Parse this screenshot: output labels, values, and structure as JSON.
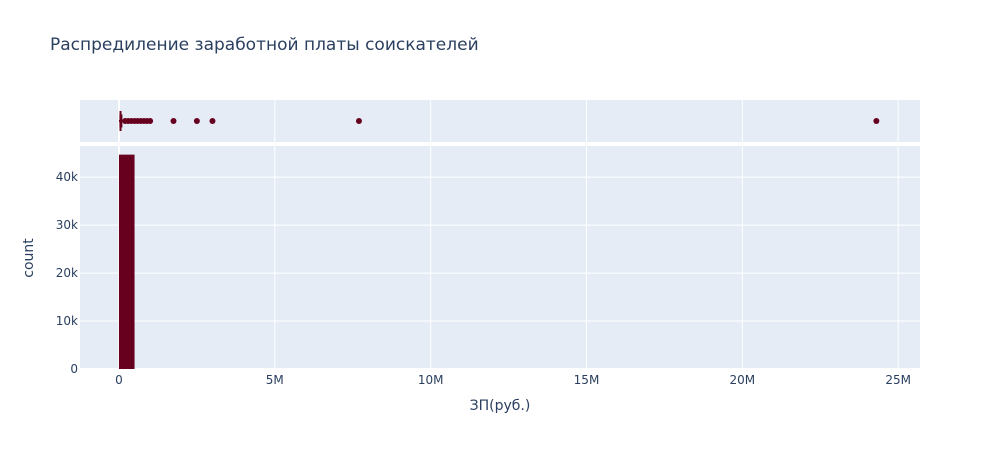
{
  "chart_data": {
    "type": "histogram",
    "title": "Распредиление заработной платы соискателей",
    "xlabel": "ЗП(руб.)",
    "ylabel": "count",
    "xlim": [
      -1250000,
      25700000
    ],
    "ylim": [
      0,
      46500
    ],
    "x_ticks": [
      {
        "value": 0,
        "label": "0"
      },
      {
        "value": 5000000,
        "label": "5M"
      },
      {
        "value": 10000000,
        "label": "10M"
      },
      {
        "value": 15000000,
        "label": "15M"
      },
      {
        "value": 20000000,
        "label": "20M"
      },
      {
        "value": 25000000,
        "label": "25M"
      }
    ],
    "y_ticks": [
      {
        "value": 0,
        "label": "0"
      },
      {
        "value": 10000,
        "label": "10k"
      },
      {
        "value": 20000,
        "label": "20k"
      },
      {
        "value": 30000,
        "label": "30k"
      },
      {
        "value": 40000,
        "label": "40k"
      }
    ],
    "bins": [
      {
        "start": 0,
        "end": 500000,
        "count": 44700
      }
    ],
    "marginal_box": {
      "type": "box",
      "min": 0,
      "q1": 30000,
      "median": 50000,
      "q3": 90000,
      "upper_fence": 180000,
      "outliers": [
        200000,
        300000,
        400000,
        500000,
        600000,
        700000,
        800000,
        900000,
        1000000,
        1750000,
        2500000,
        3000000,
        7700000,
        24300000
      ]
    },
    "color": "#67001f",
    "grid": true,
    "plot_bgcolor": "#e5ecf6"
  }
}
